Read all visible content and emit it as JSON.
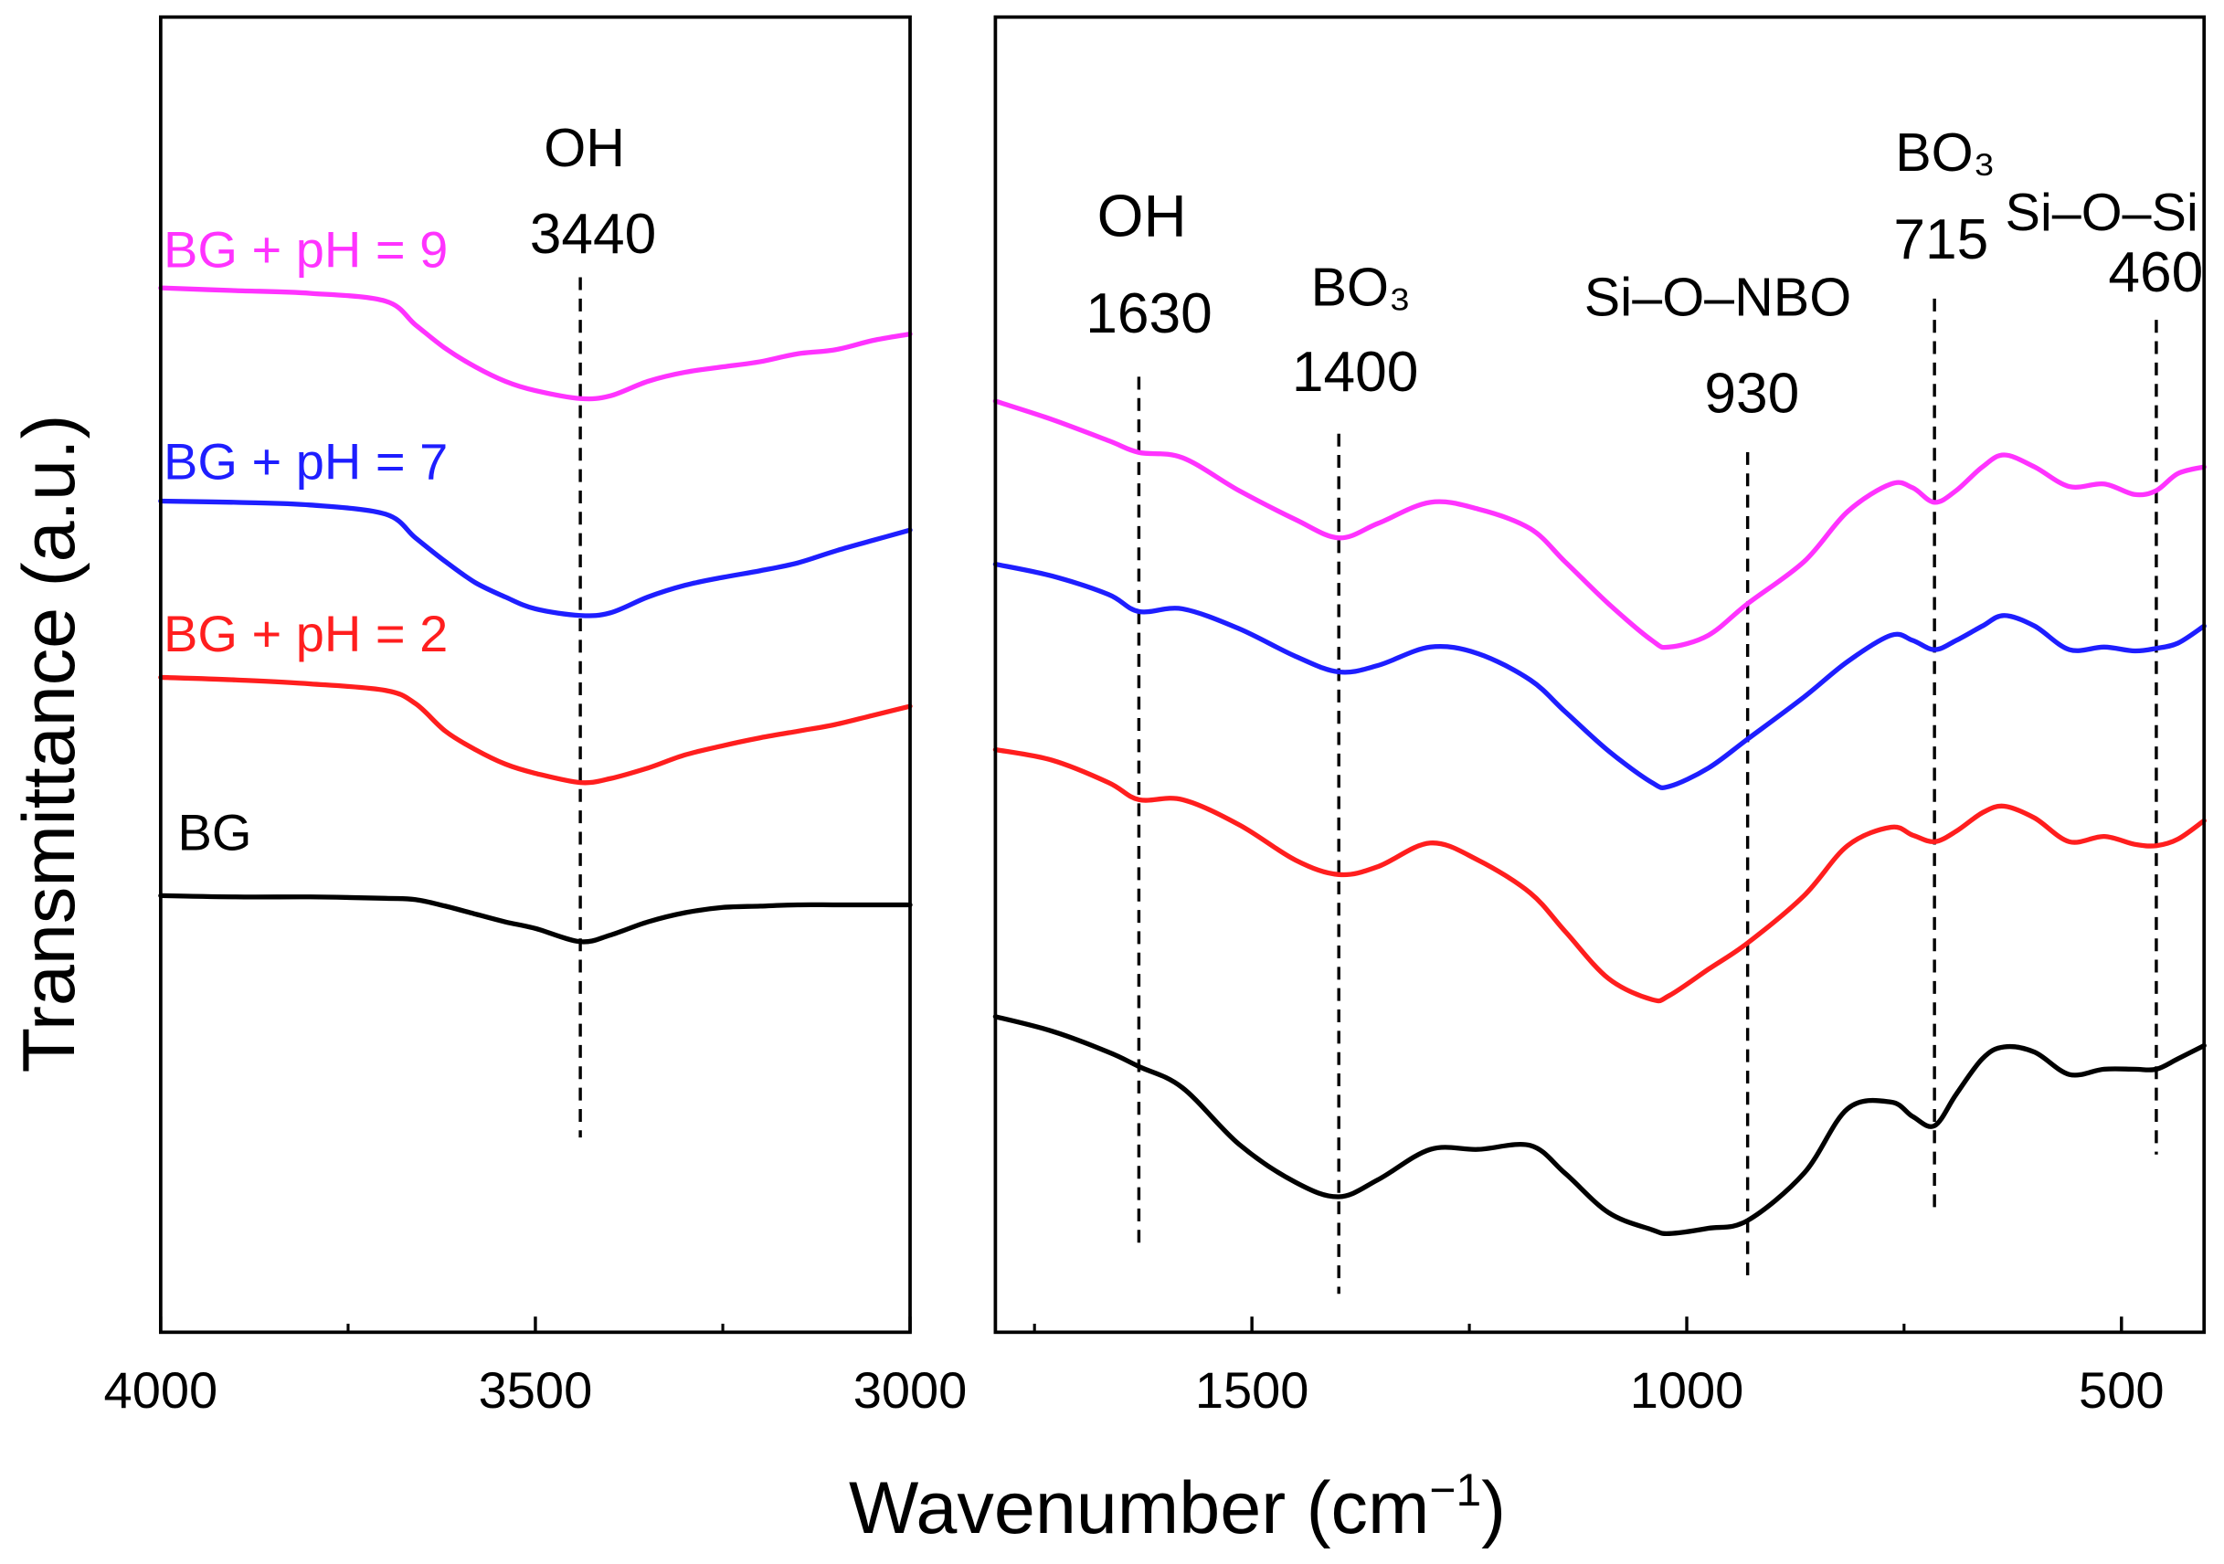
{
  "chart_data": {
    "type": "line",
    "ylabel": "Transmittance (a.u.)",
    "xlabel": {
      "text": "Wavenumber (cm",
      "sup": "−1",
      "close": ")"
    },
    "series": [
      {
        "name": "BG + pH = 9",
        "color": "#ff33ff"
      },
      {
        "name": "BG + pH = 7",
        "color": "#1e1eff"
      },
      {
        "name": "BG + pH = 2",
        "color": "#ff1e1e"
      },
      {
        "name": "BG",
        "color": "#000000"
      }
    ],
    "panels": [
      {
        "xlim": [
          4000,
          3000
        ],
        "ylim": [
          0,
          100
        ],
        "xticks": [
          4000,
          3500,
          3000
        ],
        "xtick_labels": [
          "4000",
          "3500",
          "3000"
        ],
        "minor_xticks": [
          3750,
          3250
        ],
        "x": [
          4000,
          3900,
          3800,
          3700,
          3660,
          3620,
          3580,
          3540,
          3500,
          3440,
          3400,
          3350,
          3300,
          3250,
          3200,
          3150,
          3100,
          3050,
          3000
        ],
        "values": [
          [
            79.4,
            79.2,
            79.0,
            78.4,
            76.6,
            74.8,
            73.4,
            72.3,
            71.6,
            71.0,
            71.2,
            72.3,
            73.0,
            73.4,
            73.8,
            74.4,
            74.7,
            75.4,
            75.9
          ],
          [
            63.2,
            63.1,
            62.9,
            62.2,
            60.4,
            58.6,
            57.0,
            55.9,
            55.0,
            54.5,
            54.7,
            55.9,
            56.8,
            57.4,
            57.9,
            58.5,
            59.4,
            60.2,
            61.0
          ],
          [
            49.8,
            49.6,
            49.3,
            48.8,
            47.8,
            45.7,
            44.3,
            43.2,
            42.5,
            41.8,
            42.1,
            42.9,
            43.9,
            44.6,
            45.2,
            45.7,
            46.2,
            46.9,
            47.6
          ],
          [
            33.2,
            33.1,
            33.1,
            33.0,
            32.9,
            32.4,
            31.8,
            31.2,
            30.7,
            29.7,
            30.2,
            31.2,
            31.9,
            32.3,
            32.4,
            32.5,
            32.5,
            32.5,
            32.5
          ]
        ],
        "annotations": [
          {
            "x": 3440,
            "group": "OH",
            "value_label": "3440"
          }
        ]
      },
      {
        "xlim": [
          1795,
          405
        ],
        "ylim": [
          0,
          100
        ],
        "xticks": [
          1500,
          1000,
          500
        ],
        "xtick_labels": [
          "1500",
          "1000",
          "500"
        ],
        "minor_xticks": [
          1750,
          1250,
          750
        ],
        "x": [
          1795,
          1730,
          1665,
          1630,
          1580,
          1515,
          1450,
          1400,
          1355,
          1295,
          1240,
          1180,
          1140,
          1090,
          1040,
          1020,
          975,
          930,
          865,
          815,
          765,
          740,
          715,
          690,
          660,
          635,
          600,
          560,
          520,
          485,
          460,
          435,
          405
        ],
        "values": [
          [
            70.8,
            69.4,
            67.8,
            66.9,
            66.5,
            64.0,
            61.8,
            60.4,
            61.5,
            63.1,
            62.6,
            61.1,
            58.6,
            55.4,
            52.6,
            52.1,
            53.0,
            55.4,
            58.6,
            62.4,
            64.5,
            64.2,
            63.1,
            64.0,
            65.8,
            66.7,
            65.8,
            64.3,
            64.5,
            63.7,
            64.0,
            65.3,
            65.8
          ],
          [
            58.4,
            57.5,
            56.1,
            54.8,
            55.0,
            53.5,
            51.4,
            50.2,
            50.7,
            52.1,
            51.6,
            49.6,
            47.2,
            44.2,
            41.8,
            41.5,
            42.9,
            45.1,
            48.3,
            51.0,
            53.0,
            52.6,
            51.9,
            52.6,
            53.7,
            54.5,
            53.7,
            51.9,
            52.1,
            51.8,
            52.0,
            52.4,
            53.7
          ],
          [
            44.3,
            43.5,
            41.8,
            40.5,
            40.5,
            38.6,
            35.9,
            34.8,
            35.4,
            37.2,
            35.9,
            33.4,
            30.5,
            26.9,
            25.3,
            25.6,
            27.6,
            29.6,
            33.2,
            37.0,
            38.4,
            37.8,
            37.3,
            38.1,
            39.5,
            40.0,
            39.1,
            37.3,
            37.7,
            37.1,
            37.0,
            37.5,
            38.9
          ],
          [
            24.0,
            22.9,
            21.3,
            20.2,
            18.6,
            14.3,
            11.4,
            10.3,
            11.6,
            13.9,
            13.9,
            14.2,
            12.1,
            9.1,
            7.8,
            7.5,
            7.9,
            8.5,
            12.1,
            17.0,
            17.5,
            16.4,
            15.7,
            18.1,
            20.8,
            21.7,
            21.3,
            19.6,
            20.0,
            20.0,
            20.0,
            20.8,
            21.8
          ]
        ],
        "annotations": [
          {
            "x": 1630,
            "group": "OH",
            "value_label": "1630"
          },
          {
            "x": 1400,
            "group": "BO₃",
            "value_label": "1400"
          },
          {
            "x": 930,
            "group": "Si–O–NBO",
            "value_label": "930"
          },
          {
            "x": 715,
            "group": "BO₃",
            "value_label": "715"
          },
          {
            "x": 460,
            "group": "Si–O–Si",
            "value_label": "460"
          }
        ]
      }
    ]
  }
}
